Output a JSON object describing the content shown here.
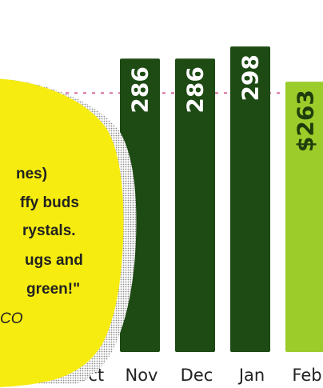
{
  "chart_data": {
    "type": "bar",
    "categories": [
      "Oct",
      "Nov",
      "Dec",
      "Jan",
      "Feb"
    ],
    "values": [
      null,
      286,
      286,
      298,
      263
    ],
    "bar_labels": [
      "",
      "286",
      "286",
      "298",
      "$263"
    ],
    "ylim": [
      0,
      310
    ],
    "reference_line": 286,
    "colors": {
      "bar": "#1e4a14",
      "bar_highlight": "#9ccc2a",
      "reference_line": "#d86aa0",
      "callout_fill": "#f6ec10"
    }
  },
  "callout": {
    "lines": [
      "nes)",
      "ffy buds",
      "rystals.",
      "ugs and",
      "green!\""
    ],
    "source": "CO"
  }
}
